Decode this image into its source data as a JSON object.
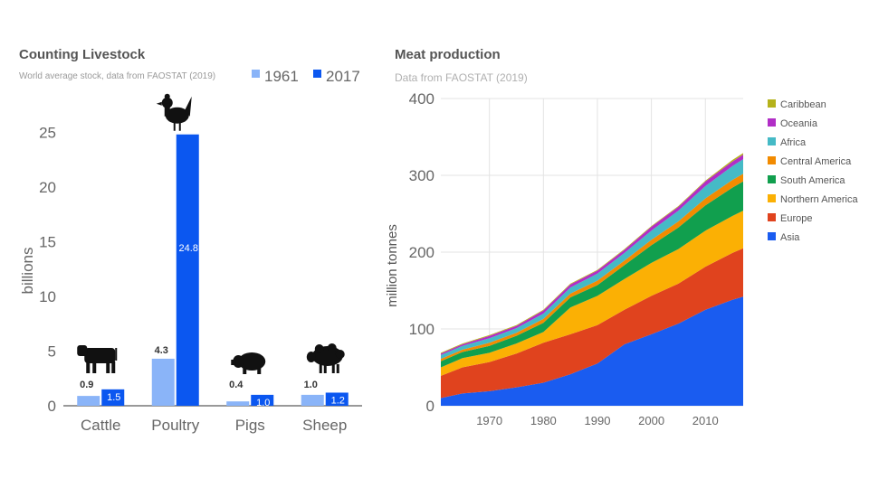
{
  "charts": [
    {
      "title": "Counting Livestock",
      "subtitle": "World average stock, data from FAOSTAT (2019)"
    },
    {
      "title": "Meat production",
      "subtitle": "Data from FAOSTAT (2019)"
    }
  ],
  "chart_data": [
    {
      "type": "bar",
      "title": "Counting Livestock",
      "subtitle": "World average stock, data from FAOSTAT (2019)",
      "xlabel": "",
      "ylabel": "billions",
      "ylim": [
        0,
        28
      ],
      "yticks": [
        0,
        5,
        10,
        15,
        20,
        25
      ],
      "categories": [
        "Cattle",
        "Poultry",
        "Pigs",
        "Sheep"
      ],
      "category_icons": [
        "cow-icon",
        "chicken-icon",
        "pig-icon",
        "sheep-icon"
      ],
      "series": [
        {
          "name": "1961",
          "color": "#8ab4f8",
          "values": [
            0.9,
            4.3,
            0.4,
            1.0
          ],
          "labels": [
            "0.9",
            "4.3",
            "0.4",
            "1.0"
          ]
        },
        {
          "name": "2017",
          "color": "#0b57f0",
          "values": [
            1.5,
            24.8,
            1.0,
            1.2
          ],
          "labels": [
            "1.5",
            "24.8",
            "1.0",
            "1.2"
          ]
        }
      ],
      "legend_position": "top-right",
      "grid": false
    },
    {
      "type": "area",
      "stacked": true,
      "title": "Meat production",
      "subtitle": "Data from FAOSTAT (2019)",
      "xlabel": "",
      "ylabel": "million tonnes",
      "xlim": [
        1961,
        2017
      ],
      "ylim": [
        0,
        400
      ],
      "xticks": [
        1970,
        1980,
        1990,
        2000,
        2010
      ],
      "yticks": [
        0,
        100,
        200,
        300,
        400
      ],
      "x": [
        1961,
        1965,
        1970,
        1975,
        1980,
        1985,
        1990,
        1995,
        2000,
        2005,
        2010,
        2015,
        2017
      ],
      "series": [
        {
          "name": "Asia",
          "color": "#1a5cf0",
          "values": [
            10,
            16,
            19,
            24,
            30,
            41,
            55,
            80,
            93,
            107,
            125,
            138,
            142
          ]
        },
        {
          "name": "Europe",
          "color": "#e0431e",
          "values": [
            29,
            34,
            38,
            44,
            52,
            52,
            50,
            45,
            50,
            52,
            56,
            61,
            63
          ]
        },
        {
          "name": "Northern America",
          "color": "#fbb004",
          "values": [
            11,
            12,
            12,
            13,
            14,
            35,
            38,
            40,
            43,
            45,
            47,
            48,
            49
          ]
        },
        {
          "name": "South America",
          "color": "#119f4e",
          "values": [
            8,
            8,
            9,
            10,
            12,
            13,
            14,
            18,
            23,
            28,
            33,
            37,
            38
          ]
        },
        {
          "name": "Central America",
          "color": "#f28b00",
          "values": [
            3,
            3,
            4,
            4,
            5,
            5,
            6,
            6,
            7,
            8,
            9,
            10,
            10
          ]
        },
        {
          "name": "Africa",
          "color": "#45bac6",
          "values": [
            5,
            5,
            6,
            6,
            7,
            8,
            9,
            10,
            12,
            14,
            16,
            18,
            19
          ]
        },
        {
          "name": "Oceania",
          "color": "#b12ec6",
          "values": [
            2,
            2,
            3,
            3,
            4,
            4,
            4,
            4,
            5,
            5,
            6,
            6,
            6
          ]
        },
        {
          "name": "Caribbean",
          "color": "#b5b21b",
          "values": [
            1,
            1,
            1,
            1,
            1,
            1,
            1,
            1,
            1,
            1,
            1,
            2,
            2
          ]
        }
      ],
      "legend_position": "right",
      "grid": true
    }
  ]
}
